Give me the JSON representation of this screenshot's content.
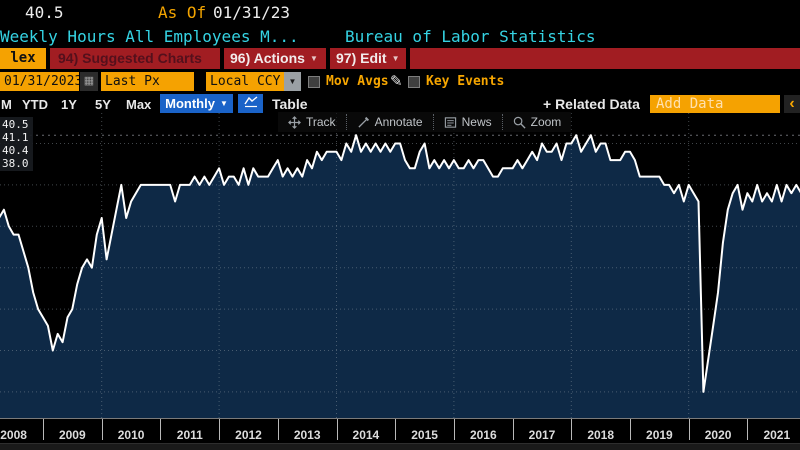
{
  "header": {
    "last_value": "40.5",
    "as_of_label": "As Of",
    "as_of_date": "01/31/23",
    "title": "Weekly Hours All Employees M...",
    "source": "Bureau of Labor Statistics"
  },
  "menu": {
    "tab_partial": "lex",
    "items": [
      {
        "label": "94) Suggested Charts"
      },
      {
        "label": "96) Actions"
      },
      {
        "label": "97) Edit"
      }
    ]
  },
  "toolbar": {
    "date_value": "01/31/2023",
    "price_field": "Last Px",
    "currency": "Local CCY",
    "mov_avgs_label": "Mov Avgs",
    "key_events_label": "Key Events"
  },
  "periodbar": {
    "periods": [
      "M",
      "YTD",
      "1Y",
      "5Y",
      "Max"
    ],
    "frequency": "Monthly",
    "table_label": "Table",
    "related_label": "+ Related Data",
    "add_data_placeholder": "Add Data",
    "collapse_glyph": "‹"
  },
  "charttools": {
    "track": "Track",
    "annotate": "Annotate",
    "news": "News",
    "zoom": "Zoom"
  },
  "chart_data": {
    "type": "area",
    "title": "Weekly Hours All Employees M...",
    "source": "Bureau of Labor Statistics",
    "frequency": "monthly",
    "start_year": 2008,
    "start_month": 3,
    "legend": {
      "last": "40.5",
      "high": "41.1",
      "average": "40.4",
      "low": "38.0"
    },
    "ylim": [
      37.7,
      41.3
    ],
    "y_gridlines": [
      41.0,
      40.5,
      40.0,
      39.5,
      39.0,
      38.5,
      38.0
    ],
    "x_gridline_years": [
      2010,
      2012,
      2014,
      2016,
      2018,
      2020
    ],
    "x_tick_years": [
      2009,
      2010,
      2011,
      2012,
      2013,
      2014,
      2015,
      2016,
      2017,
      2018,
      2019,
      2020,
      2021
    ],
    "x_axis_labels": [
      2008,
      2009,
      2010,
      2011,
      2012,
      2013,
      2014,
      2015,
      2016,
      2017,
      2018,
      2019,
      2020,
      2021
    ],
    "line_color": "#ffffff",
    "area_color": "#0e2946",
    "values": [
      40.2,
      40.1,
      40.2,
      40.0,
      39.9,
      39.9,
      39.7,
      39.5,
      39.2,
      39.0,
      38.9,
      38.8,
      38.5,
      38.7,
      38.6,
      38.9,
      39.0,
      39.3,
      39.5,
      39.6,
      39.5,
      39.9,
      40.1,
      39.6,
      39.9,
      40.2,
      40.5,
      40.1,
      40.3,
      40.4,
      40.5,
      40.5,
      40.5,
      40.5,
      40.5,
      40.5,
      40.5,
      40.3,
      40.5,
      40.5,
      40.5,
      40.6,
      40.5,
      40.6,
      40.5,
      40.6,
      40.7,
      40.5,
      40.6,
      40.6,
      40.5,
      40.7,
      40.5,
      40.7,
      40.6,
      40.6,
      40.6,
      40.7,
      40.8,
      40.6,
      40.7,
      40.6,
      40.7,
      40.6,
      40.8,
      40.7,
      40.9,
      40.8,
      40.9,
      40.9,
      40.9,
      40.8,
      41.0,
      40.9,
      41.1,
      40.9,
      41.0,
      40.9,
      41.0,
      40.9,
      41.0,
      40.9,
      41.0,
      41.0,
      40.8,
      40.7,
      40.7,
      40.9,
      41.0,
      40.7,
      40.8,
      40.7,
      40.8,
      40.7,
      40.8,
      40.7,
      40.7,
      40.8,
      40.7,
      40.8,
      40.8,
      40.7,
      40.6,
      40.6,
      40.7,
      40.7,
      40.7,
      40.8,
      40.7,
      40.8,
      40.9,
      40.8,
      41.0,
      40.9,
      40.9,
      41.0,
      40.8,
      41.0,
      41.0,
      41.1,
      40.9,
      41.0,
      41.1,
      40.9,
      41.0,
      41.0,
      40.8,
      40.8,
      40.8,
      40.9,
      40.9,
      40.8,
      40.6,
      40.6,
      40.6,
      40.6,
      40.6,
      40.5,
      40.5,
      40.4,
      40.5,
      40.3,
      40.5,
      40.4,
      40.3,
      38.0,
      38.4,
      38.8,
      39.2,
      39.8,
      40.2,
      40.4,
      40.5,
      40.2,
      40.4,
      40.3,
      40.5,
      40.3,
      40.4,
      40.3,
      40.5,
      40.3,
      40.5,
      40.4,
      40.5,
      40.4
    ]
  }
}
